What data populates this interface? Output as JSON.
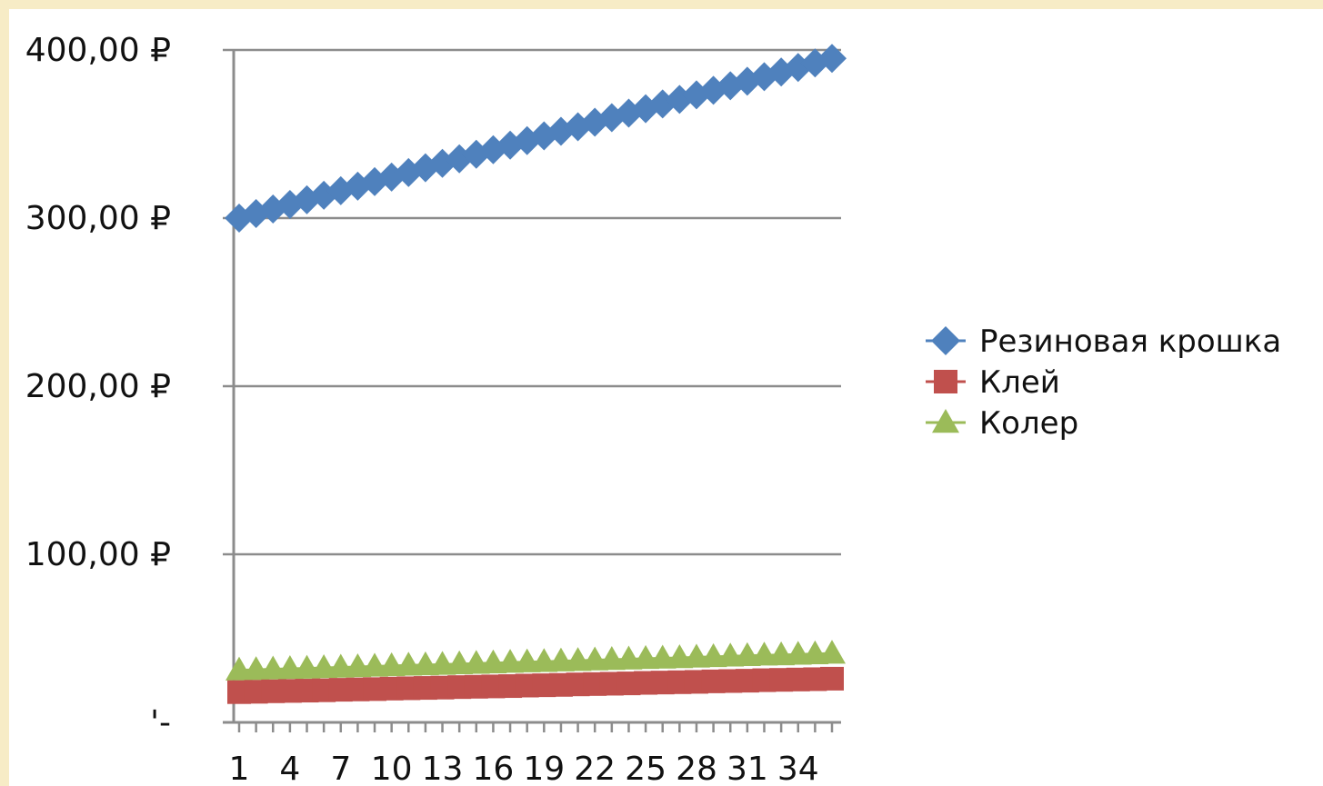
{
  "chart_data": {
    "type": "line",
    "title": "",
    "xlabel": "",
    "ylabel": "",
    "x": [
      1,
      2,
      3,
      4,
      5,
      6,
      7,
      8,
      9,
      10,
      11,
      12,
      13,
      14,
      15,
      16,
      17,
      18,
      19,
      20,
      21,
      22,
      23,
      24,
      25,
      26,
      27,
      28,
      29,
      30,
      31,
      32,
      33,
      34,
      35,
      36
    ],
    "x_tick_labels": [
      "1",
      "4",
      "7",
      "10",
      "13",
      "16",
      "19",
      "22",
      "25",
      "28",
      "31",
      "34"
    ],
    "y_tick_labels": [
      "'-",
      "100,00 ₽",
      "200,00 ₽",
      "300,00 ₽",
      "400,00 ₽"
    ],
    "ylim": [
      0,
      400
    ],
    "grid": "horizontal",
    "legend_position": "right",
    "series": [
      {
        "name": "Резиновая крошка",
        "color": "#4f81bd",
        "marker": "diamond",
        "values": [
          300.0,
          302.7,
          305.4,
          308.1,
          310.9,
          313.6,
          316.3,
          319.0,
          321.7,
          324.4,
          327.1,
          329.9,
          332.6,
          335.3,
          338.0,
          340.7,
          343.4,
          346.1,
          348.9,
          351.6,
          354.3,
          357.0,
          359.7,
          362.4,
          365.1,
          367.9,
          370.6,
          373.3,
          376.0,
          378.7,
          381.4,
          384.1,
          386.9,
          389.6,
          392.3,
          395.0
        ]
      },
      {
        "name": "Клей",
        "color": "#c0504d",
        "marker": "square",
        "values": [
          18.0,
          18.2,
          18.5,
          18.7,
          18.9,
          19.1,
          19.4,
          19.6,
          19.8,
          20.1,
          20.3,
          20.5,
          20.7,
          21.0,
          21.2,
          21.4,
          21.6,
          21.9,
          22.1,
          22.3,
          22.6,
          22.8,
          23.0,
          23.2,
          23.5,
          23.7,
          23.9,
          24.1,
          24.4,
          24.6,
          24.8,
          25.1,
          25.3,
          25.5,
          25.7,
          26.0
        ]
      },
      {
        "name": "Колер",
        "color": "#9bbb59",
        "marker": "triangle",
        "values": [
          31.0,
          31.3,
          31.6,
          31.9,
          32.1,
          32.4,
          32.7,
          33.0,
          33.3,
          33.6,
          33.9,
          34.1,
          34.4,
          34.7,
          35.0,
          35.3,
          35.6,
          35.9,
          36.1,
          36.4,
          36.7,
          37.0,
          37.3,
          37.6,
          37.9,
          38.1,
          38.4,
          38.7,
          39.0,
          39.3,
          39.6,
          39.9,
          40.1,
          40.4,
          40.7,
          41.0
        ]
      }
    ]
  }
}
